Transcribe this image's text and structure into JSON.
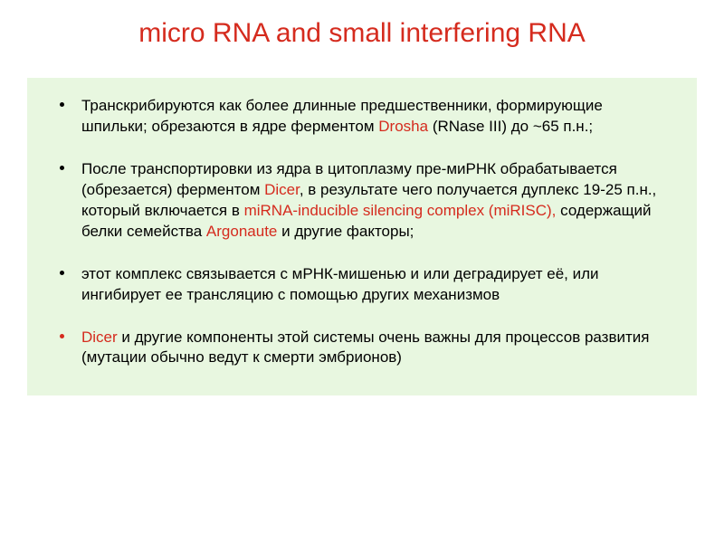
{
  "colors": {
    "title": "#d52b1e",
    "red_text": "#d52b1e",
    "black_text": "#000000",
    "content_bg": "#e8f7e0",
    "slide_bg": "#ffffff",
    "bullet_black": "#000000",
    "bullet_red": "#d52b1e"
  },
  "title": "micro RNA and small interfering RNA",
  "bullets": [
    {
      "marker_color_key": "bullet_black",
      "segments": [
        {
          "text": "Транскрибируются как более длинные предшественники, формирующие шпильки; обрезаются в ядре ферментом ",
          "red": false
        },
        {
          "text": "Drosha",
          "red": true
        },
        {
          "text": " (RNase III) до ~65 п.н.;",
          "red": false
        }
      ]
    },
    {
      "marker_color_key": "bullet_black",
      "segments": [
        {
          "text": "После транспортировки из ядра в цитоплазму пре-миРНК обрабатывается (обрезается) ферментом ",
          "red": false
        },
        {
          "text": "Dicer",
          "red": true
        },
        {
          "text": ", в результате чего получается дуплекс 19-25 п.н., который включается в ",
          "red": false
        },
        {
          "text": "miRNA-inducible silencing complex (miRISC),",
          "red": true
        },
        {
          "text": " содержащий белки семейства ",
          "red": false
        },
        {
          "text": "Argonaute",
          "red": true
        },
        {
          "text": " и другие факторы;",
          "red": false
        }
      ]
    },
    {
      "marker_color_key": "bullet_black",
      "segments": [
        {
          "text": " этот комплекс связывается с мРНК-мишенью и или деградирует её, или ингибирует ее трансляцию с помощью других механизмов",
          "red": false
        }
      ]
    },
    {
      "marker_color_key": "bullet_red",
      "segments": [
        {
          "text": "Dicer",
          "red": true
        },
        {
          "text": " и другие компоненты этой системы очень важны для процессов развития (мутации обычно ведут к смерти эмбрионов)",
          "red": false
        }
      ]
    }
  ]
}
